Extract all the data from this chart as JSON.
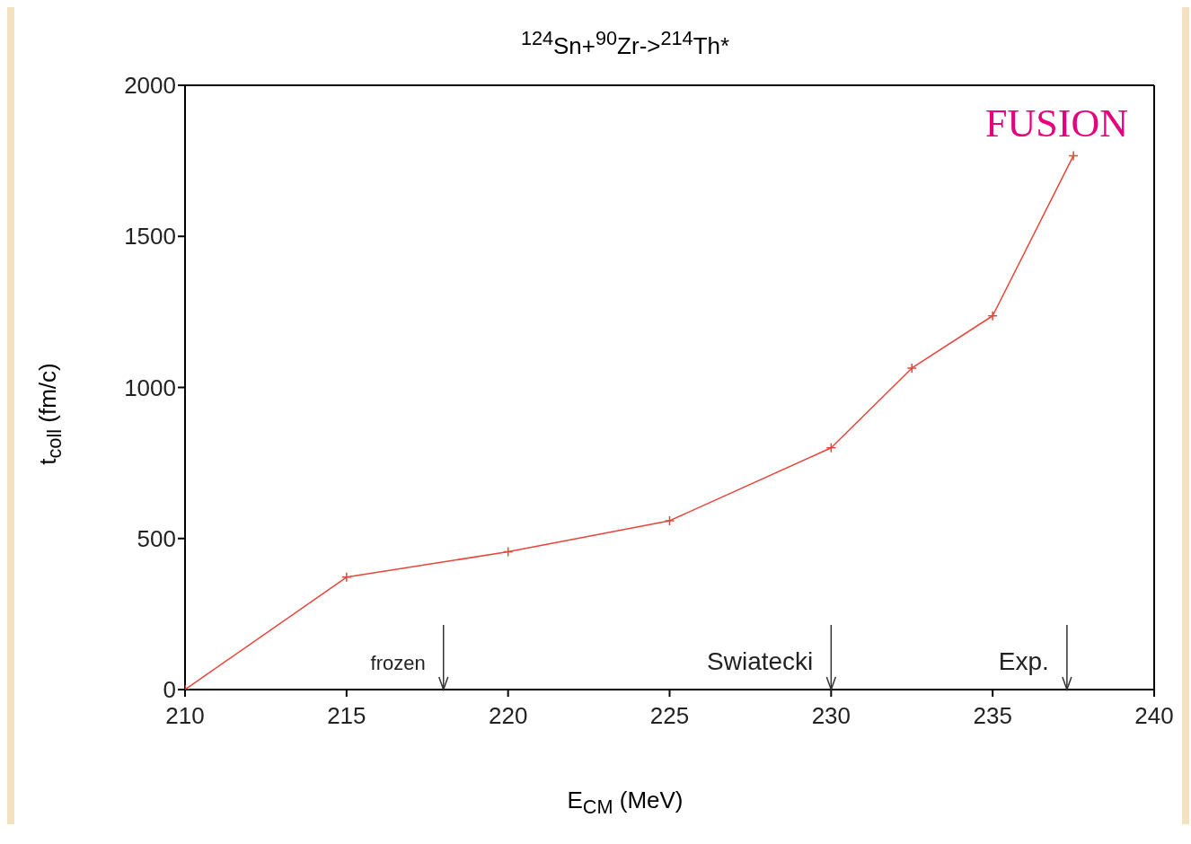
{
  "chart_data": {
    "type": "line",
    "title": "$^{124}$Sn+$^{90}$Zr->$^{214}$Th*",
    "xlabel": "E$_{CM}$ (MeV)",
    "ylabel": "t$_{coll}$ (fm/c)",
    "x": [
      210,
      215,
      220,
      225,
      230,
      232.5,
      235,
      237.5
    ],
    "series": [
      {
        "color": "#e8443a",
        "values": [
          0,
          372,
          456,
          559,
          800,
          1064,
          1237,
          1767
        ]
      }
    ],
    "xlim": [
      210,
      240
    ],
    "xticks": [
      210,
      215,
      220,
      225,
      230,
      235,
      240
    ],
    "ylim": [
      0,
      2000
    ],
    "yticks": [
      0,
      500,
      1000,
      1500,
      2000
    ],
    "marker": "cross",
    "line_style": "solid",
    "annotations": [
      "FUSION"
    ],
    "ref_lines": [
      {
        "axis": "x",
        "value": 218,
        "label": "frozen"
      },
      {
        "axis": "x",
        "value": 230,
        "label": "Swiatecki"
      },
      {
        "axis": "x",
        "value": 237.3,
        "label": "Exp."
      }
    ]
  }
}
